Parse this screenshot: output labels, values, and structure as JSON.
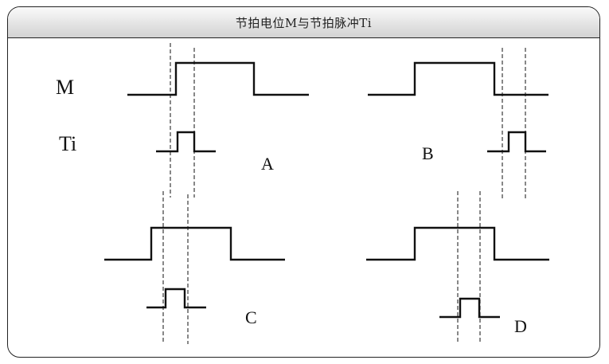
{
  "title": "节拍电位M与节拍脉冲Ti",
  "signal_labels": {
    "m": "M",
    "ti": "Ti"
  },
  "cases": [
    {
      "letter": "A"
    },
    {
      "letter": "B"
    },
    {
      "letter": "C"
    },
    {
      "letter": "D"
    }
  ]
}
